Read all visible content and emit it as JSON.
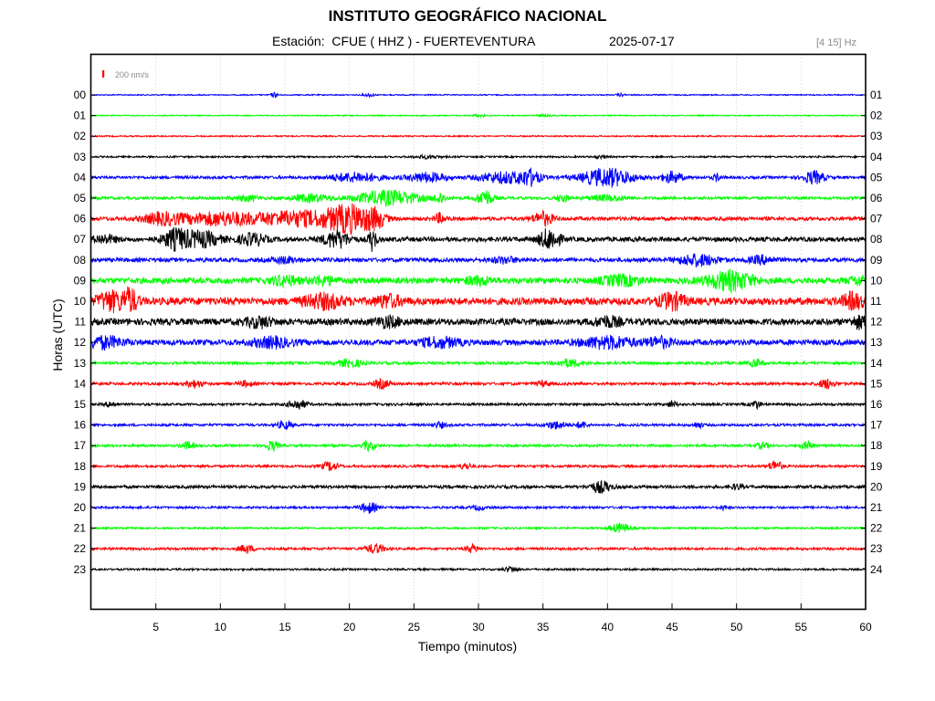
{
  "header": {
    "title": "INSTITUTO GEOGRÁFICO NACIONAL",
    "station_prefix": "Estación:",
    "station": "CFUE ( HHZ ) - FUERTEVENTURA",
    "date": "2025-07-17",
    "filter_band": "[4 15] Hz"
  },
  "chart_data": {
    "type": "line",
    "title": "INSTITUTO GEOGRÁFICO NACIONAL",
    "xlabel": "Tiempo (minutos)",
    "ylabel": "Horas (UTC)",
    "xlim": [
      0,
      60
    ],
    "x_ticks": [
      5,
      10,
      15,
      20,
      25,
      30,
      35,
      40,
      45,
      50,
      55,
      60
    ],
    "scale_label": "200 nm/s",
    "grid": true,
    "trace_colors": [
      "#0000ff",
      "#00ff00",
      "#ff0000",
      "#000000"
    ],
    "left_hour_labels": [
      "00",
      "01",
      "02",
      "03",
      "04",
      "05",
      "06",
      "07",
      "08",
      "09",
      "10",
      "11",
      "12",
      "13",
      "14",
      "15",
      "16",
      "17",
      "18",
      "19",
      "20",
      "21",
      "22",
      "23"
    ],
    "right_hour_labels": [
      "01",
      "02",
      "03",
      "04",
      "05",
      "06",
      "07",
      "08",
      "09",
      "10",
      "11",
      "12",
      "13",
      "14",
      "15",
      "16",
      "17",
      "18",
      "19",
      "20",
      "21",
      "22",
      "23",
      "24"
    ],
    "traces": [
      {
        "hour": "00",
        "base_amp": 0.6,
        "events": [
          [
            14.2,
            2.5,
            0.3
          ],
          [
            21.5,
            2.0,
            0.4
          ],
          [
            41,
            1.5,
            0.3
          ]
        ]
      },
      {
        "hour": "01",
        "base_amp": 0.6,
        "events": [
          [
            30,
            1.3,
            0.5
          ],
          [
            35,
            1.2,
            0.5
          ]
        ]
      },
      {
        "hour": "02",
        "base_amp": 0.7,
        "events": []
      },
      {
        "hour": "03",
        "base_amp": 0.9,
        "events": [
          [
            26,
            1.5,
            1.0
          ],
          [
            39.5,
            1.5,
            0.5
          ]
        ]
      },
      {
        "hour": "04",
        "base_amp": 1.5,
        "events": [
          [
            20.5,
            5,
            2
          ],
          [
            26,
            5,
            1.5
          ],
          [
            32,
            6,
            2
          ],
          [
            34,
            7,
            0.8
          ],
          [
            40,
            10,
            2
          ],
          [
            45,
            6,
            0.8
          ],
          [
            48.5,
            4,
            0.3
          ],
          [
            56,
            7,
            0.8
          ]
        ]
      },
      {
        "hour": "05",
        "base_amp": 1.5,
        "events": [
          [
            12,
            3,
            1
          ],
          [
            17,
            4,
            1.5
          ],
          [
            23,
            8,
            2.5
          ],
          [
            27,
            6,
            0.4
          ],
          [
            30.5,
            9,
            0.6
          ],
          [
            36.5,
            4,
            0.5
          ],
          [
            40,
            3,
            1.5
          ]
        ]
      },
      {
        "hour": "06",
        "base_amp": 2.0,
        "events": [
          [
            5.5,
            6,
            1.5
          ],
          [
            10,
            7,
            3
          ],
          [
            16,
            8,
            3
          ],
          [
            20,
            14,
            1.8
          ],
          [
            22,
            8,
            0.8
          ],
          [
            27,
            5,
            0.4
          ],
          [
            35,
            7,
            0.8
          ]
        ]
      },
      {
        "hour": "07",
        "base_amp": 2.5,
        "events": [
          [
            1,
            4,
            1
          ],
          [
            6.5,
            10,
            1
          ],
          [
            8.5,
            8,
            1.5
          ],
          [
            12.5,
            6,
            1
          ],
          [
            19,
            9,
            1
          ],
          [
            21.8,
            12,
            0.3
          ],
          [
            35.5,
            11,
            0.8
          ]
        ]
      },
      {
        "hour": "08",
        "base_amp": 2.2,
        "events": [
          [
            15,
            3,
            1
          ],
          [
            32,
            3,
            1
          ],
          [
            47,
            6,
            1.5
          ],
          [
            52,
            4,
            1
          ]
        ]
      },
      {
        "hour": "09",
        "base_amp": 3.2,
        "events": [
          [
            15,
            5,
            1
          ],
          [
            18,
            4,
            1
          ],
          [
            30,
            4,
            1
          ],
          [
            41,
            5,
            1.5
          ],
          [
            49.5,
            10,
            1.8
          ],
          [
            59.5,
            4,
            0.8
          ]
        ]
      },
      {
        "hour": "10",
        "base_amp": 4.0,
        "events": [
          [
            1.5,
            10,
            1
          ],
          [
            3,
            12,
            0.6
          ],
          [
            18,
            7,
            1.5
          ],
          [
            23,
            6,
            1
          ],
          [
            45,
            8,
            1
          ],
          [
            59,
            8,
            0.8
          ]
        ]
      },
      {
        "hour": "11",
        "base_amp": 3.5,
        "events": [
          [
            13,
            5,
            1
          ],
          [
            23,
            5,
            1
          ],
          [
            40,
            5,
            1
          ],
          [
            59.5,
            6,
            0.6
          ]
        ]
      },
      {
        "hour": "12",
        "base_amp": 3.0,
        "events": [
          [
            1,
            6,
            1.5
          ],
          [
            14,
            5,
            1.5
          ],
          [
            27,
            5,
            1.5
          ],
          [
            40,
            6,
            2
          ],
          [
            44,
            5,
            1
          ]
        ]
      },
      {
        "hour": "13",
        "base_amp": 1.5,
        "events": [
          [
            20,
            4,
            1
          ],
          [
            37,
            4,
            1
          ],
          [
            51.5,
            4,
            0.5
          ]
        ]
      },
      {
        "hour": "14",
        "base_amp": 1.5,
        "events": [
          [
            8,
            4,
            0.6
          ],
          [
            12,
            3,
            0.5
          ],
          [
            22.5,
            5,
            0.6
          ],
          [
            35,
            3,
            0.5
          ],
          [
            57,
            5,
            0.6
          ]
        ]
      },
      {
        "hour": "15",
        "base_amp": 1.3,
        "events": [
          [
            1.5,
            3,
            0.4
          ],
          [
            16,
            5,
            0.7
          ],
          [
            45,
            3,
            0.4
          ],
          [
            51.5,
            4,
            0.4
          ]
        ]
      },
      {
        "hour": "16",
        "base_amp": 1.3,
        "events": [
          [
            15,
            4,
            0.6
          ],
          [
            27,
            3,
            0.5
          ],
          [
            36,
            4,
            0.8
          ],
          [
            38,
            4,
            0.4
          ],
          [
            47,
            3,
            0.4
          ]
        ]
      },
      {
        "hour": "17",
        "base_amp": 1.3,
        "events": [
          [
            7.5,
            4,
            0.5
          ],
          [
            14,
            5,
            0.5
          ],
          [
            21.5,
            5,
            0.5
          ],
          [
            52,
            3,
            0.5
          ],
          [
            55.5,
            4,
            0.5
          ]
        ]
      },
      {
        "hour": "18",
        "base_amp": 1.3,
        "events": [
          [
            18.5,
            5,
            0.6
          ],
          [
            29,
            3,
            0.5
          ],
          [
            53,
            6,
            0.5
          ]
        ]
      },
      {
        "hour": "19",
        "base_amp": 1.6,
        "events": [
          [
            39.5,
            6,
            0.8
          ],
          [
            50,
            2.5,
            0.5
          ]
        ]
      },
      {
        "hour": "20",
        "base_amp": 1.2,
        "events": [
          [
            21.5,
            6,
            0.6
          ],
          [
            30,
            2.5,
            0.5
          ],
          [
            49,
            2,
            0.4
          ]
        ]
      },
      {
        "hour": "21",
        "base_amp": 1.0,
        "events": [
          [
            41,
            5,
            0.8
          ]
        ]
      },
      {
        "hour": "22",
        "base_amp": 1.3,
        "events": [
          [
            12,
            4,
            0.6
          ],
          [
            22,
            5,
            0.7
          ],
          [
            29.5,
            4,
            0.5
          ]
        ]
      },
      {
        "hour": "23",
        "base_amp": 1.0,
        "events": [
          [
            32.5,
            3,
            0.5
          ]
        ]
      }
    ]
  }
}
